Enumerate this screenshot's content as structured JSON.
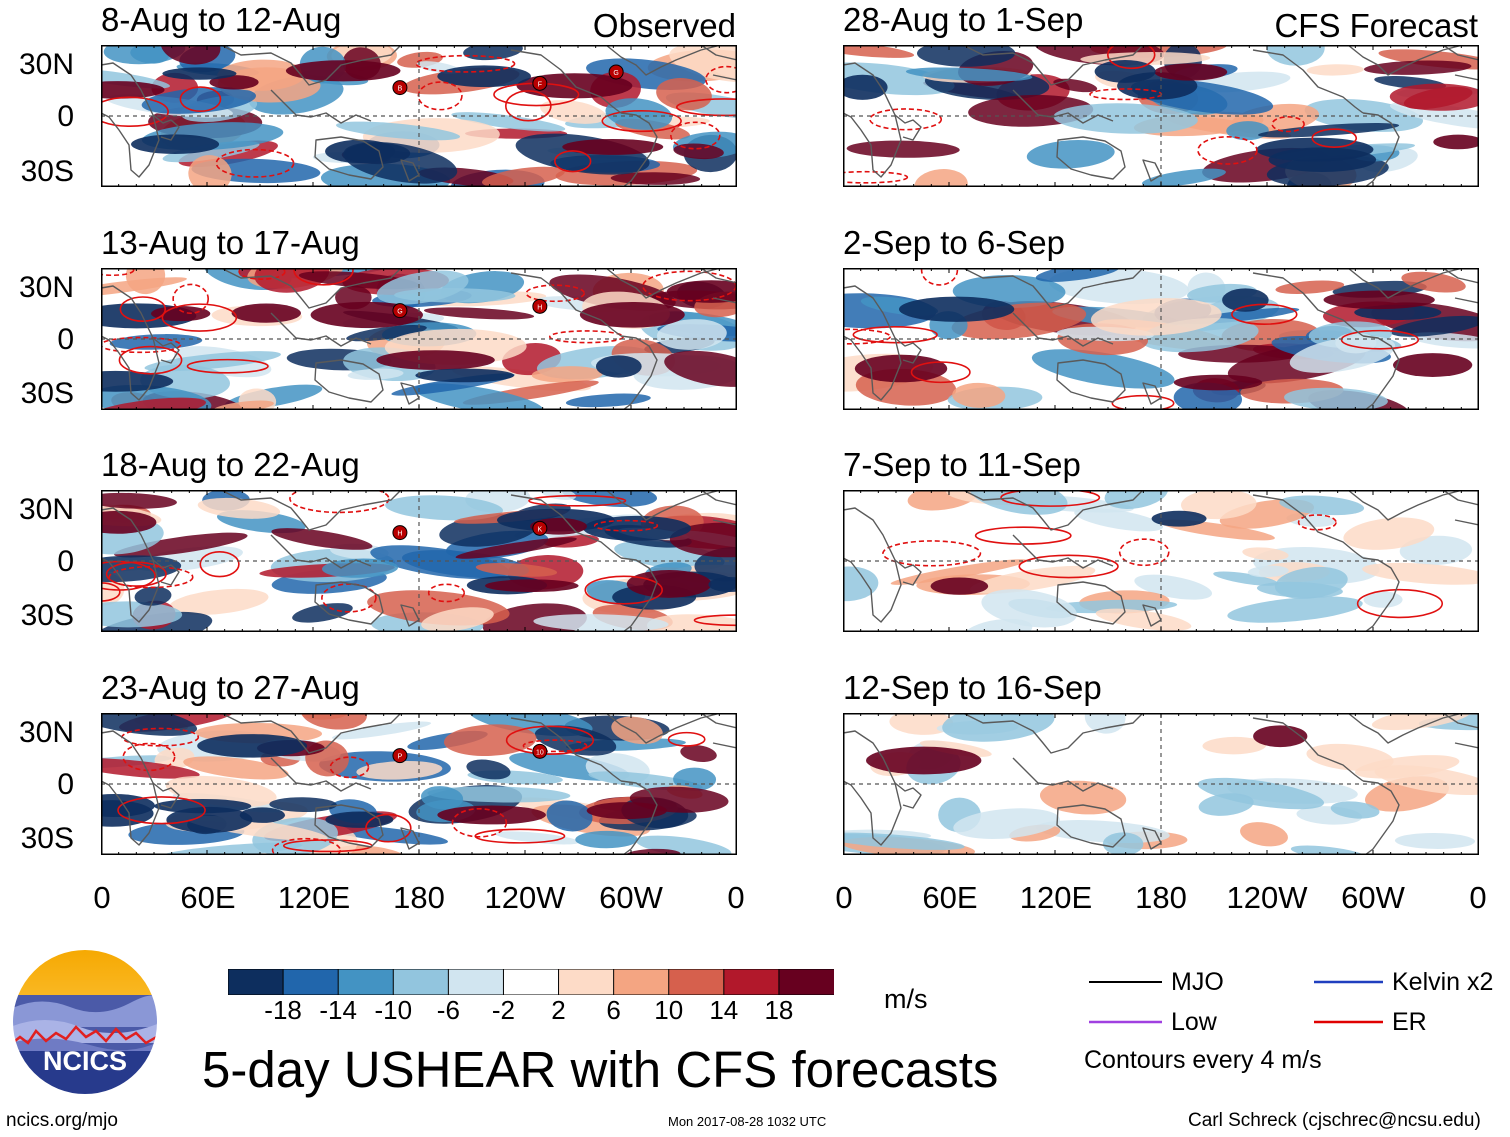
{
  "header": {
    "left_source": "Observed",
    "right_source": "CFS Forecast"
  },
  "panels": [
    {
      "title": "8-Aug to 12-Aug",
      "storms": [
        "B",
        "F",
        "G"
      ]
    },
    {
      "title": "13-Aug to 17-Aug",
      "storms": [
        "G",
        "H"
      ]
    },
    {
      "title": "18-Aug to 22-Aug",
      "storms": [
        "H",
        "K"
      ]
    },
    {
      "title": "23-Aug to 27-Aug",
      "storms": [
        "P",
        "10"
      ]
    },
    {
      "title": "28-Aug to 1-Sep",
      "storms": []
    },
    {
      "title": "2-Sep to 6-Sep",
      "storms": []
    },
    {
      "title": "7-Sep to 11-Sep",
      "storms": []
    },
    {
      "title": "12-Sep to 16-Sep",
      "storms": []
    }
  ],
  "lat_labels": [
    "30N",
    "0",
    "30S"
  ],
  "lon_labels": [
    "0",
    "60E",
    "120E",
    "180",
    "120W",
    "60W",
    "0"
  ],
  "colorbar": {
    "colors": [
      "#0d2e5e",
      "#2166ac",
      "#4393c3",
      "#92c5de",
      "#d1e5f0",
      "#ffffff",
      "#fddbc7",
      "#f4a582",
      "#d6604d",
      "#b2182b",
      "#67001f"
    ],
    "labels": [
      "-18",
      "-14",
      "-10",
      "-6",
      "-2",
      "2",
      "6",
      "10",
      "14",
      "18"
    ],
    "units": "m/s"
  },
  "legend": {
    "items": [
      {
        "label": "MJO",
        "color": "#000000"
      },
      {
        "label": "Kelvin x2",
        "color": "#1f3fbf"
      },
      {
        "label": "Low",
        "color": "#a040e0"
      },
      {
        "label": "ER",
        "color": "#e00000"
      }
    ],
    "note": "Contours every 4 m/s"
  },
  "logo": {
    "text": "NCICS"
  },
  "title": "5-day USHEAR with CFS forecasts",
  "footer": {
    "url": "ncics.org/mjo",
    "timestamp": "Mon 2017-08-28 1032 UTC",
    "author": "Carl Schreck (cjschrec@ncsu.edu)"
  }
}
